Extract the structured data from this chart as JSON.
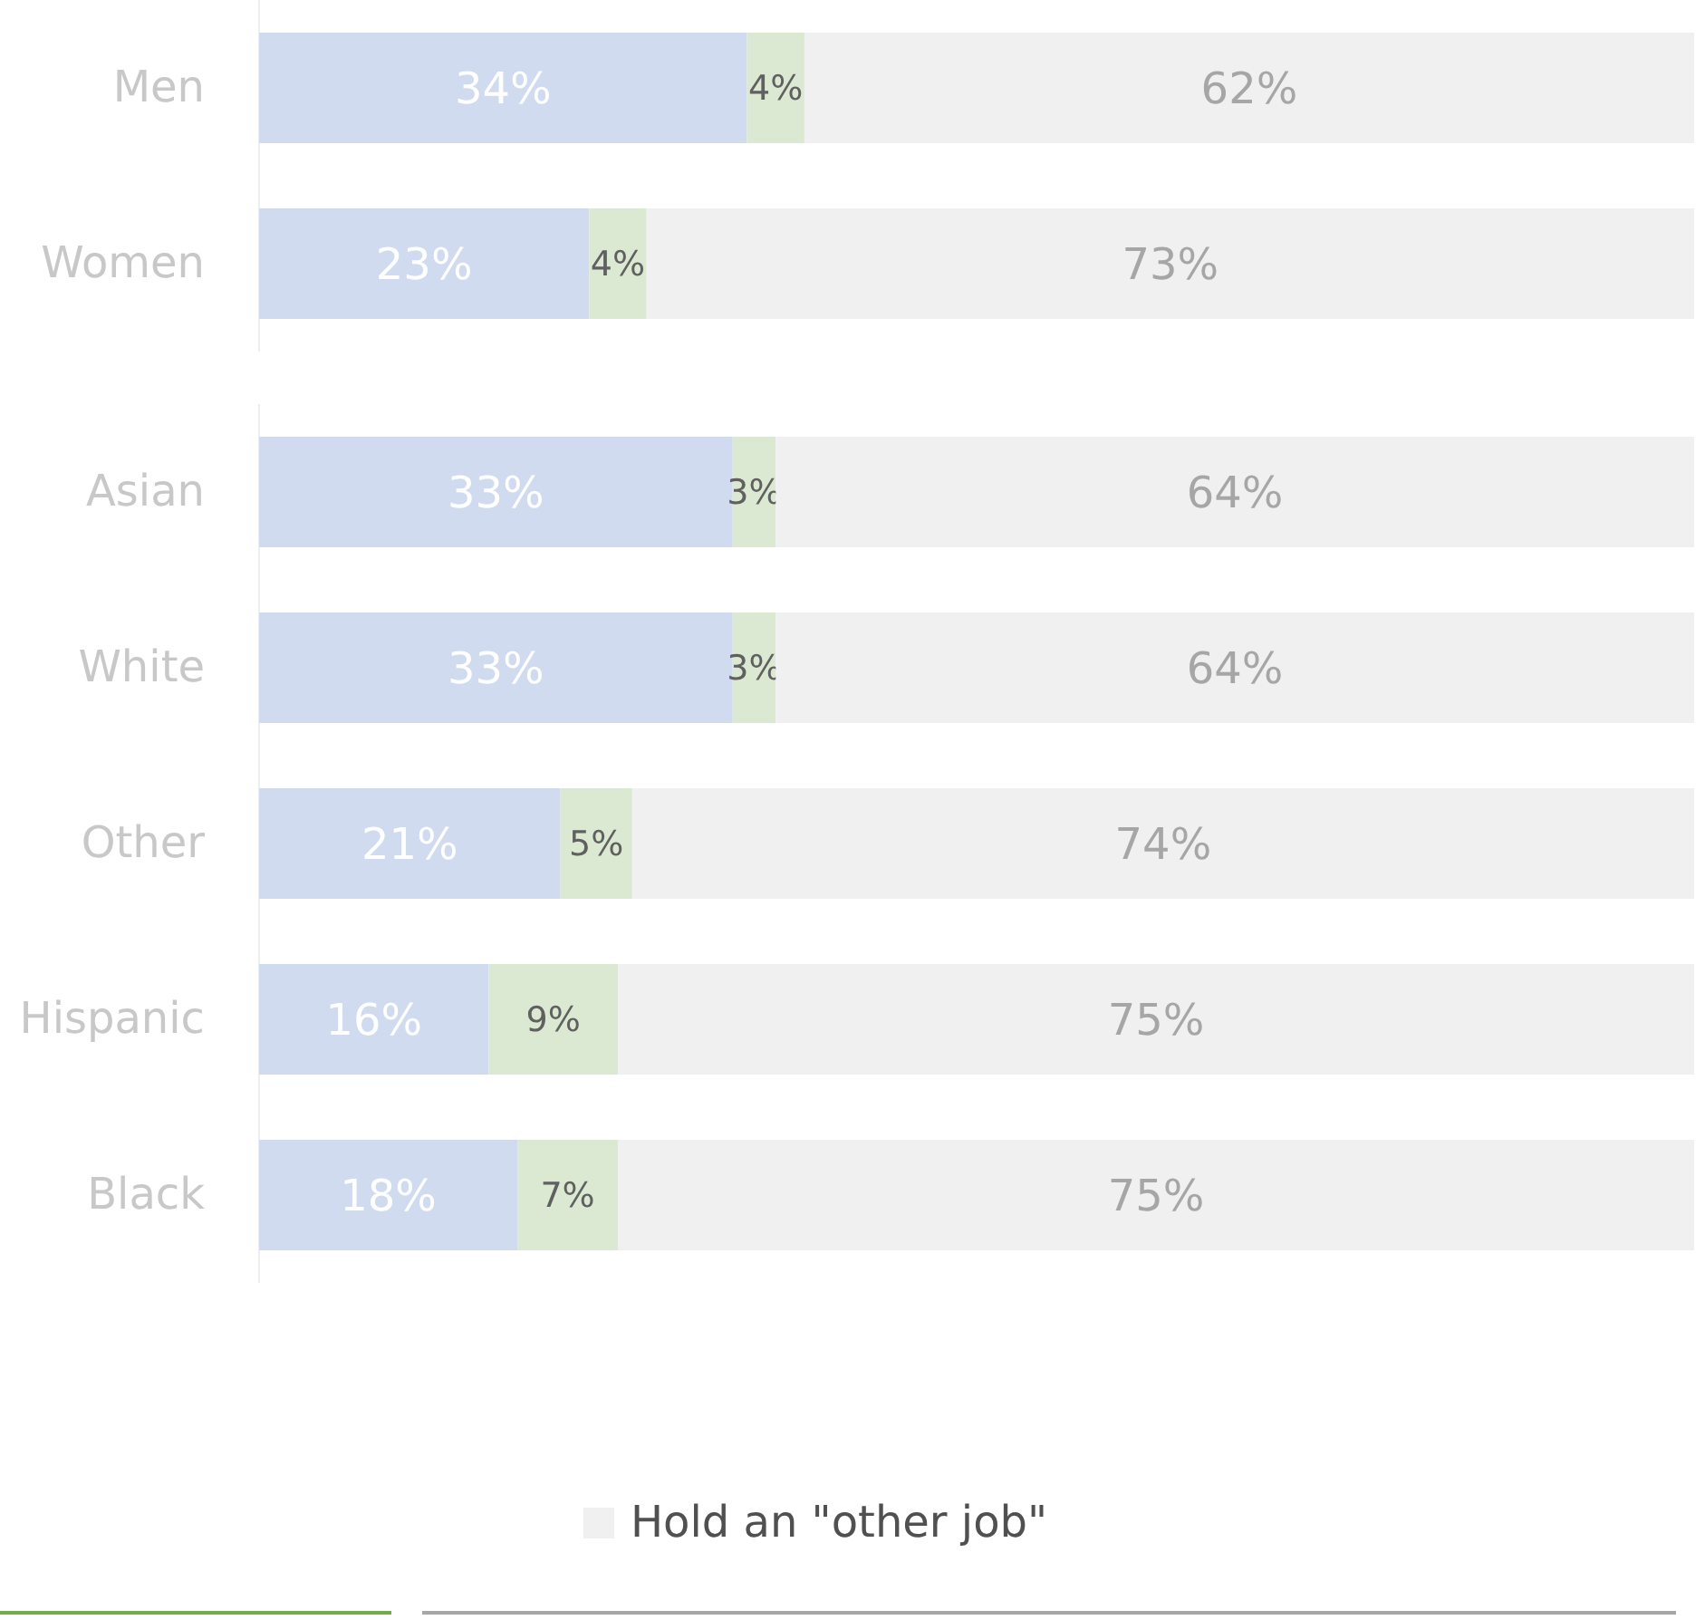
{
  "chart_data": [
    {
      "type": "bar",
      "orientation": "horizontal",
      "stacked": true,
      "categories": [
        "Men",
        "Women"
      ],
      "xlim": [
        0,
        100
      ],
      "tick_labels": "y",
      "legend": false,
      "series": [
        {
          "color": "#d0dbef",
          "values": [
            34,
            23
          ],
          "value_labels": [
            "34%",
            "23%"
          ]
        },
        {
          "color": "#dce9d2",
          "values": [
            4,
            4
          ],
          "value_labels": [
            "4%",
            "4%"
          ]
        },
        {
          "color": "#f0f0f0",
          "values": [
            62,
            73
          ],
          "value_labels": [
            "62%",
            "73%"
          ]
        }
      ]
    },
    {
      "type": "bar",
      "orientation": "horizontal",
      "stacked": true,
      "categories": [
        "Asian",
        "White",
        "Other",
        "Hispanic",
        "Black"
      ],
      "xlim": [
        0,
        100
      ],
      "tick_labels": "y",
      "legend": "bottom",
      "series": [
        {
          "color": "#d0dbef",
          "values": [
            33,
            33,
            21,
            16,
            18
          ],
          "value_labels": [
            "33%",
            "33%",
            "21%",
            "16%",
            "18%"
          ]
        },
        {
          "color": "#dce9d2",
          "values": [
            3,
            3,
            5,
            9,
            7
          ],
          "value_labels": [
            "3%",
            "3%",
            "5%",
            "9%",
            "7%"
          ]
        },
        {
          "name": "Hold an \"other job\"",
          "color": "#f0f0f0",
          "values": [
            64,
            64,
            74,
            75,
            75
          ],
          "value_labels": [
            "64%",
            "64%",
            "74%",
            "75%",
            "75%"
          ]
        }
      ]
    }
  ]
}
